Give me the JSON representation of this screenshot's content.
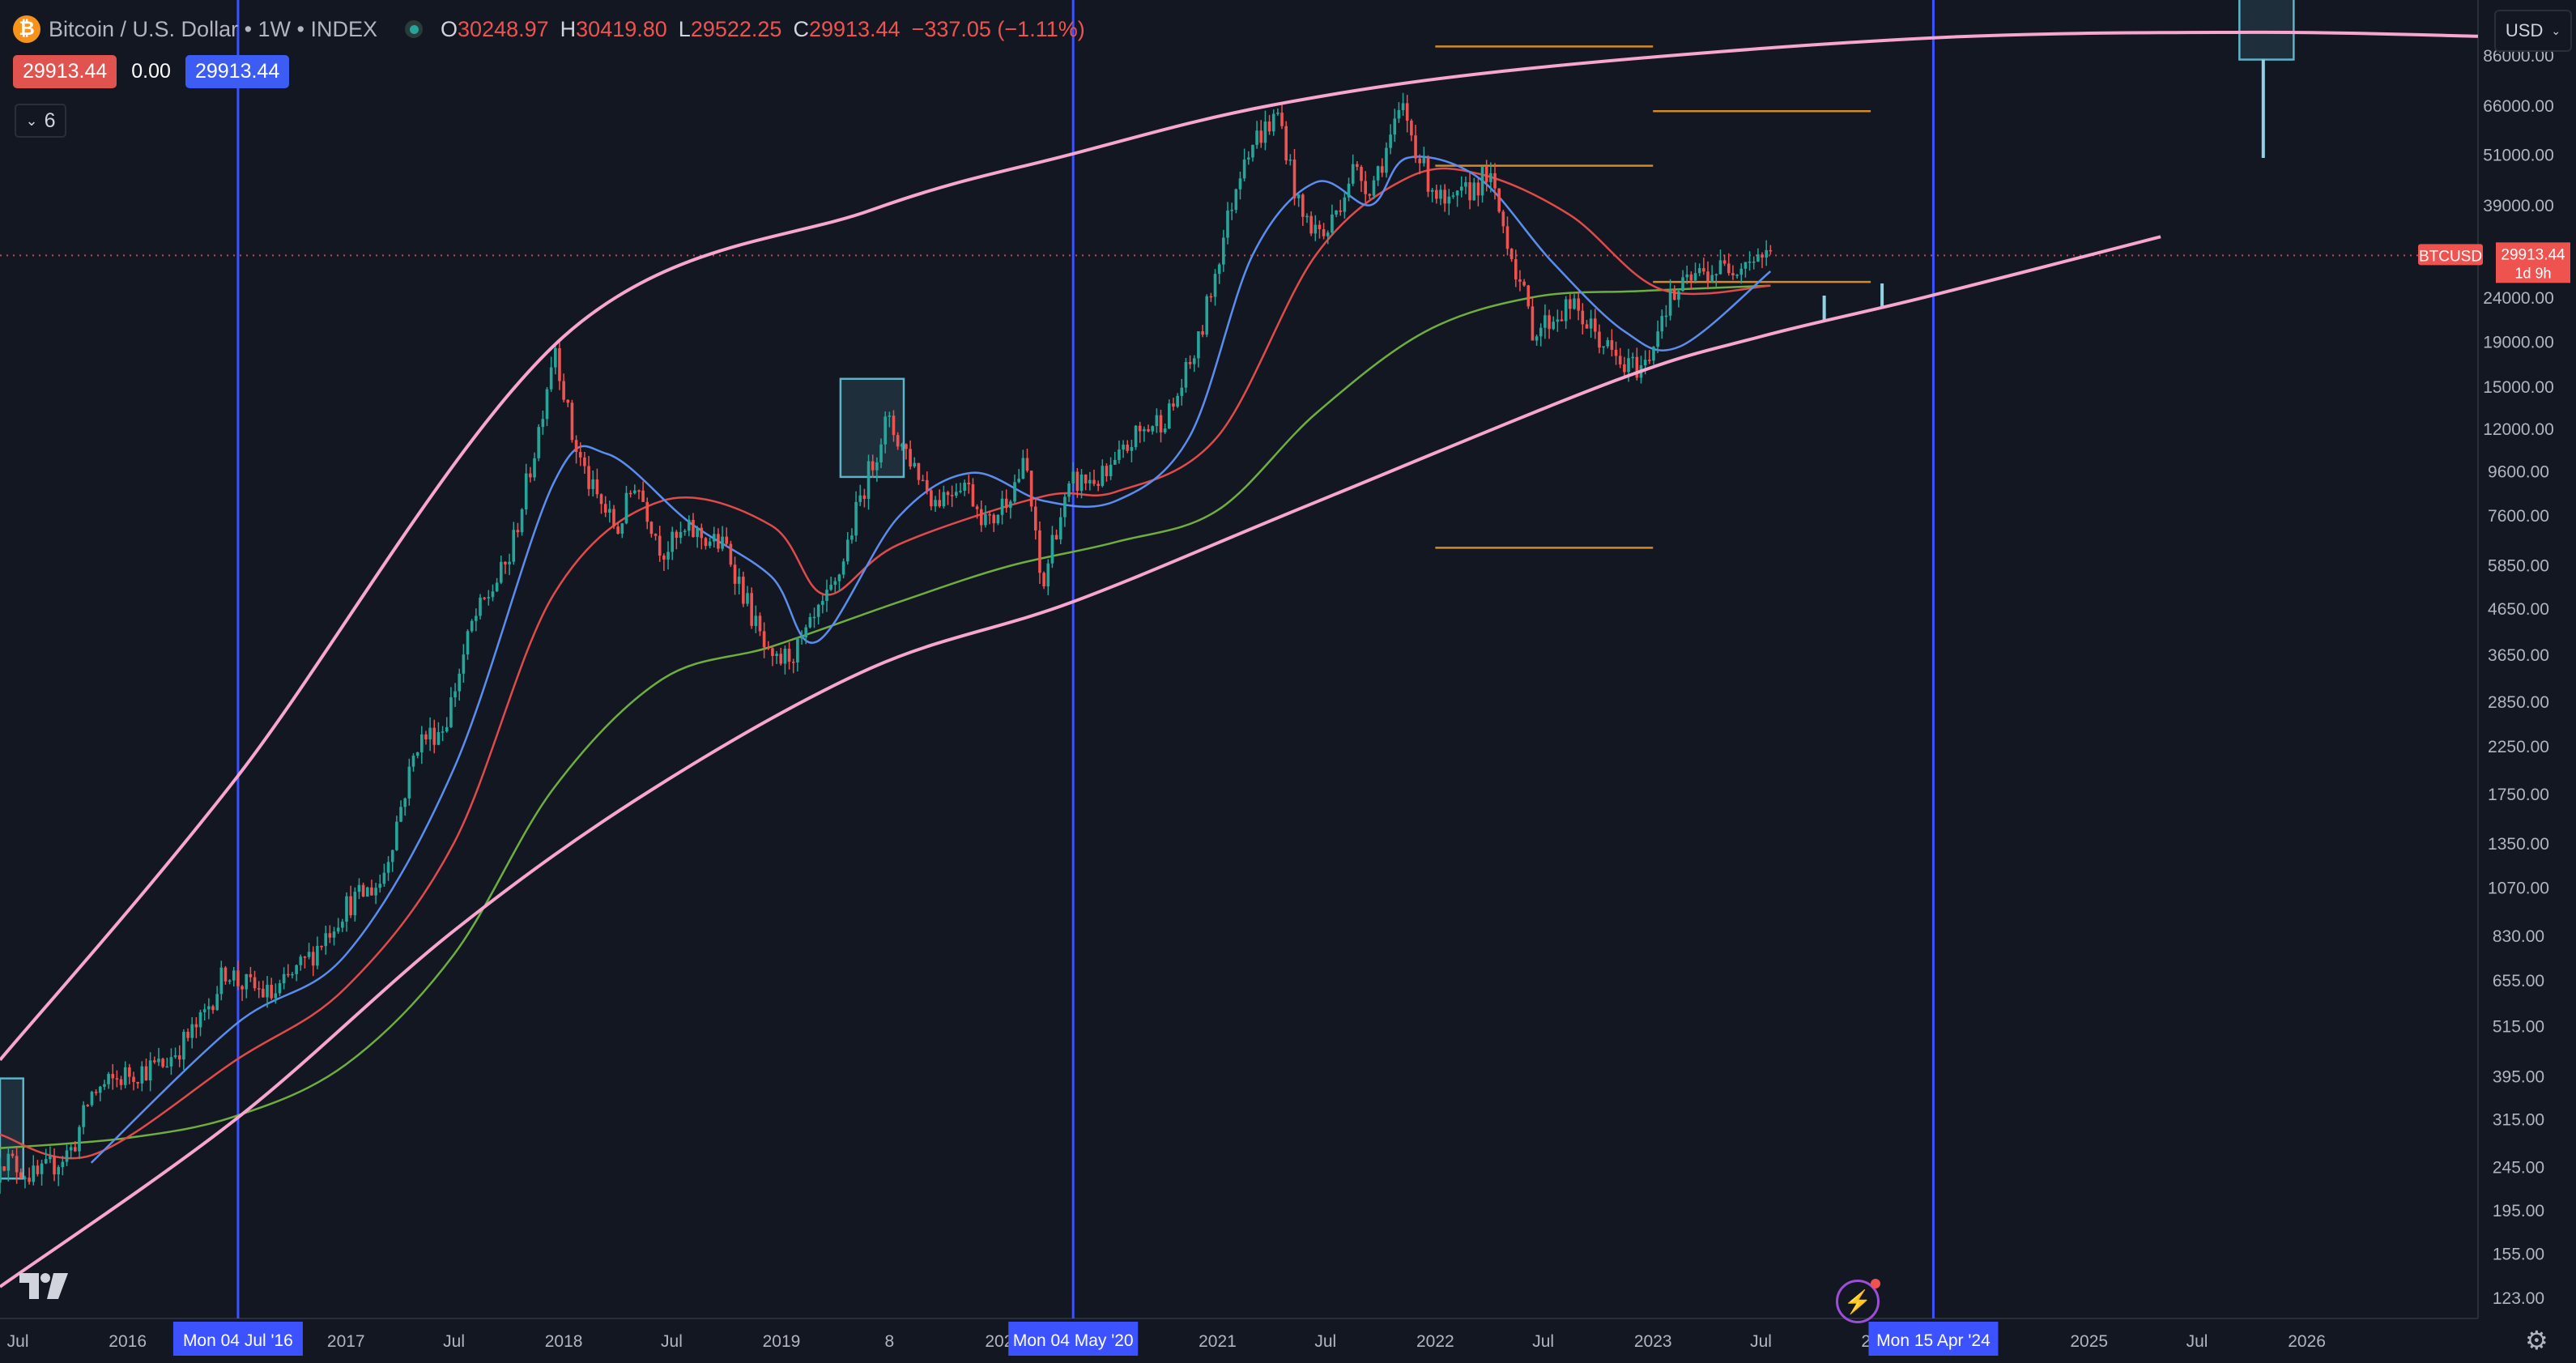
{
  "header": {
    "symbol": "Bitcoin / U.S. Dollar • 1W • INDEX",
    "ohlc": [
      {
        "k": "O",
        "v": "30248.97"
      },
      {
        "k": "H",
        "v": "30419.80"
      },
      {
        "k": "L",
        "v": "29522.25"
      },
      {
        "k": "C",
        "v": "29913.44"
      }
    ],
    "change": "−337.05 (−1.11%)",
    "sell_price": "29913.44",
    "spread": "0.00",
    "buy_price": "29913.44",
    "indicator_count": "6",
    "currency": "USD"
  },
  "colors": {
    "background": "#131722",
    "up": "#26a69a",
    "down": "#ef5350",
    "channel": "#f8a5d0",
    "vline": "#3d52ff",
    "ma_fast": "#5b8def",
    "ma_mid": "#e04a4a",
    "ma_slow": "#6fae3e",
    "hline": "#d58a2a",
    "box": "#5fb3c7"
  },
  "chart_data": {
    "type": "candlestick",
    "title": "Bitcoin / U.S. Dollar • 1W • INDEX",
    "y_scale": "log",
    "ylim": [
      110,
      115000
    ],
    "xlim": [
      "2015-06-01",
      "2026-10-15"
    ],
    "y_ticks": [
      "86000.00",
      "66000.00",
      "51000.00",
      "39000.00",
      "24000.00",
      "19000.00",
      "15000.00",
      "12000.00",
      "9600.00",
      "7600.00",
      "5850.00",
      "4650.00",
      "3650.00",
      "2850.00",
      "2250.00",
      "1750.00",
      "1350.00",
      "1070.00",
      "830.00",
      "655.00",
      "515.00",
      "395.00",
      "315.00",
      "245.00",
      "195.00",
      "155.00",
      "123.00"
    ],
    "x_ticks": [
      {
        "label": "Jul",
        "date": "2015-07-01"
      },
      {
        "label": "2016",
        "date": "2016-01-01"
      },
      {
        "label": "2017",
        "date": "2017-01-01"
      },
      {
        "label": "Jul",
        "date": "2017-07-01"
      },
      {
        "label": "2018",
        "date": "2018-01-01"
      },
      {
        "label": "Jul",
        "date": "2018-07-01"
      },
      {
        "label": "2019",
        "date": "2019-01-01"
      },
      {
        "label": "8",
        "date": "2019-07-01"
      },
      {
        "label": "202",
        "date": "2020-01-01"
      },
      {
        "label": "2021",
        "date": "2021-01-01"
      },
      {
        "label": "Jul",
        "date": "2021-07-01"
      },
      {
        "label": "2022",
        "date": "2022-01-01"
      },
      {
        "label": "Jul",
        "date": "2022-07-01"
      },
      {
        "label": "2023",
        "date": "2023-01-01"
      },
      {
        "label": "Jul",
        "date": "2023-07-01"
      },
      {
        "label": "20",
        "date": "2024-01-01"
      },
      {
        "label": "2025",
        "date": "2025-01-01"
      },
      {
        "label": "Jul",
        "date": "2025-07-01"
      },
      {
        "label": "2026",
        "date": "2026-01-01"
      }
    ],
    "cycle_markers": [
      {
        "label": "Mon 04 Jul '16",
        "date": "2016-07-04"
      },
      {
        "label": "Mon 04 May '20",
        "date": "2020-05-04"
      },
      {
        "label": "Mon 15 Apr '24",
        "date": "2024-04-15"
      }
    ],
    "price_tag": {
      "label": "BTCUSD",
      "value": "29913.44",
      "countdown": "1d 9h"
    },
    "channel_upper": [
      [
        "2015-06-01",
        430
      ],
      [
        "2016-07-01",
        1900
      ],
      [
        "2018-01-01",
        19500
      ],
      [
        "2019-06-01",
        38000
      ],
      [
        "2020-05-01",
        51000
      ],
      [
        "2021-04-01",
        66000
      ],
      [
        "2022-06-01",
        80000
      ],
      [
        "2024-04-01",
        94000
      ],
      [
        "2025-10-01",
        97000
      ],
      [
        "2026-10-15",
        95000
      ]
    ],
    "channel_lower": [
      [
        "2015-06-01",
        130
      ],
      [
        "2016-07-01",
        315
      ],
      [
        "2017-07-01",
        850
      ],
      [
        "2018-06-01",
        1800
      ],
      [
        "2019-06-01",
        3400
      ],
      [
        "2020-05-01",
        4800
      ],
      [
        "2021-06-01",
        8000
      ],
      [
        "2022-11-01",
        15500
      ],
      [
        "2023-07-01",
        19500
      ],
      [
        "2024-04-01",
        24000
      ],
      [
        "2025-05-01",
        33000
      ]
    ],
    "ohlc_weekly": [
      [
        "2015-06-01",
        225,
        260
      ],
      [
        "2015-08-01",
        250,
        230
      ],
      [
        "2015-10-01",
        235,
        270
      ],
      [
        "2015-11-01",
        270,
        360
      ],
      [
        "2016-01-01",
        360,
        400
      ],
      [
        "2016-03-01",
        400,
        420
      ],
      [
        "2016-05-01",
        420,
        520
      ],
      [
        "2016-06-15",
        520,
        700
      ],
      [
        "2016-07-04",
        700,
        650
      ],
      [
        "2016-09-01",
        650,
        600
      ],
      [
        "2016-11-01",
        600,
        740
      ],
      [
        "2017-01-01",
        740,
        970
      ],
      [
        "2017-03-01",
        970,
        1100
      ],
      [
        "2017-05-01",
        1100,
        2300
      ],
      [
        "2017-06-15",
        2300,
        2500
      ],
      [
        "2017-08-01",
        2500,
        4300
      ],
      [
        "2017-10-01",
        4300,
        6000
      ],
      [
        "2017-11-15",
        6000,
        11000
      ],
      [
        "2017-12-17",
        11000,
        19000
      ],
      [
        "2018-01-15",
        19000,
        11500
      ],
      [
        "2018-02-15",
        11500,
        8800
      ],
      [
        "2018-04-01",
        8800,
        7000
      ],
      [
        "2018-05-01",
        7000,
        9200
      ],
      [
        "2018-06-15",
        9200,
        6300
      ],
      [
        "2018-08-01",
        6300,
        7000
      ],
      [
        "2018-10-01",
        7000,
        6400
      ],
      [
        "2018-11-20",
        6400,
        4200
      ],
      [
        "2018-12-15",
        4200,
        3400
      ],
      [
        "2019-02-01",
        3400,
        3800
      ],
      [
        "2019-04-01",
        3800,
        5200
      ],
      [
        "2019-05-15",
        5200,
        8500
      ],
      [
        "2019-06-26",
        8500,
        12500
      ],
      [
        "2019-08-01",
        12500,
        10500
      ],
      [
        "2019-09-15",
        10500,
        8200
      ],
      [
        "2019-11-01",
        8200,
        9200
      ],
      [
        "2019-12-15",
        9200,
        7200
      ],
      [
        "2020-02-15",
        7200,
        10000
      ],
      [
        "2020-03-13",
        10000,
        5000
      ],
      [
        "2020-04-01",
        5000,
        6900
      ],
      [
        "2020-05-04",
        6900,
        9000
      ],
      [
        "2020-07-01",
        9000,
        9300
      ],
      [
        "2020-08-15",
        9300,
        11500
      ],
      [
        "2020-10-15",
        11500,
        13100
      ],
      [
        "2020-12-01",
        13100,
        19000
      ],
      [
        "2021-01-01",
        19000,
        29000
      ],
      [
        "2021-02-15",
        29000,
        52000
      ],
      [
        "2021-04-14",
        52000,
        63000
      ],
      [
        "2021-05-20",
        63000,
        37000
      ],
      [
        "2021-07-01",
        37000,
        33000
      ],
      [
        "2021-08-15",
        33000,
        47000
      ],
      [
        "2021-09-15",
        47000,
        43000
      ],
      [
        "2021-11-08",
        43000,
        65000
      ],
      [
        "2021-12-15",
        65000,
        46000
      ],
      [
        "2022-01-20",
        46000,
        38000
      ],
      [
        "2022-03-30",
        38000,
        46000
      ],
      [
        "2022-05-10",
        46000,
        30000
      ],
      [
        "2022-06-15",
        30000,
        20000
      ],
      [
        "2022-08-15",
        20000,
        23000
      ],
      [
        "2022-10-01",
        23000,
        19500
      ],
      [
        "2022-11-10",
        19500,
        16500
      ],
      [
        "2022-12-20",
        16500,
        16800
      ],
      [
        "2023-01-20",
        16800,
        23000
      ],
      [
        "2023-03-15",
        23000,
        27000
      ],
      [
        "2023-05-01",
        27000,
        28000
      ],
      [
        "2023-06-22",
        28000,
        30000
      ],
      [
        "2023-07-17",
        30000,
        29913.44
      ]
    ],
    "ma_20w": [
      [
        "2015-11-01",
        250
      ],
      [
        "2016-07-01",
        520
      ],
      [
        "2017-01-01",
        750
      ],
      [
        "2017-07-01",
        2000
      ],
      [
        "2017-12-15",
        9000
      ],
      [
        "2018-03-15",
        10500
      ],
      [
        "2018-08-01",
        7300
      ],
      [
        "2018-12-15",
        5500
      ],
      [
        "2019-03-01",
        3900
      ],
      [
        "2019-07-15",
        7500
      ],
      [
        "2019-11-15",
        9500
      ],
      [
        "2020-03-15",
        8200
      ],
      [
        "2020-07-15",
        8200
      ],
      [
        "2020-11-15",
        11500
      ],
      [
        "2021-03-01",
        30000
      ],
      [
        "2021-06-15",
        44000
      ],
      [
        "2021-09-15",
        39000
      ],
      [
        "2021-11-15",
        50000
      ],
      [
        "2022-03-15",
        45000
      ],
      [
        "2022-07-15",
        29000
      ],
      [
        "2022-11-15",
        20000
      ],
      [
        "2023-02-15",
        18500
      ],
      [
        "2023-07-17",
        27500
      ]
    ],
    "ma_50w": [
      [
        "2015-06-01",
        290
      ],
      [
        "2015-11-01",
        260
      ],
      [
        "2016-07-01",
        430
      ],
      [
        "2017-01-01",
        630
      ],
      [
        "2017-07-01",
        1350
      ],
      [
        "2017-12-15",
        5000
      ],
      [
        "2018-06-15",
        8200
      ],
      [
        "2018-12-15",
        7200
      ],
      [
        "2019-03-15",
        5000
      ],
      [
        "2019-07-15",
        6500
      ],
      [
        "2020-03-15",
        8400
      ],
      [
        "2020-07-15",
        8600
      ],
      [
        "2021-01-01",
        11500
      ],
      [
        "2021-06-15",
        30000
      ],
      [
        "2021-11-15",
        45000
      ],
      [
        "2022-03-15",
        46000
      ],
      [
        "2022-08-15",
        37000
      ],
      [
        "2023-01-15",
        25000
      ],
      [
        "2023-07-17",
        25500
      ]
    ],
    "ma_200w": [
      [
        "2015-06-01",
        270
      ],
      [
        "2016-01-01",
        285
      ],
      [
        "2016-07-01",
        320
      ],
      [
        "2017-01-01",
        420
      ],
      [
        "2017-07-01",
        750
      ],
      [
        "2017-12-15",
        1800
      ],
      [
        "2018-06-15",
        3200
      ],
      [
        "2018-12-15",
        3800
      ],
      [
        "2019-07-15",
        4800
      ],
      [
        "2020-01-15",
        5800
      ],
      [
        "2020-07-15",
        6600
      ],
      [
        "2021-01-01",
        7800
      ],
      [
        "2021-06-15",
        13000
      ],
      [
        "2021-12-15",
        20000
      ],
      [
        "2022-06-15",
        24000
      ],
      [
        "2022-12-15",
        24800
      ],
      [
        "2023-07-17",
        25500
      ]
    ],
    "horizontal_levels": [
      {
        "price": 90000,
        "from": "2022-01-01",
        "to": "2023-01-01"
      },
      {
        "price": 64000,
        "from": "2023-01-01",
        "to": "2024-01-01"
      },
      {
        "price": 48000,
        "from": "2022-01-01",
        "to": "2023-01-01"
      },
      {
        "price": 26000,
        "from": "2023-01-01",
        "to": "2024-01-01"
      },
      {
        "price": 6400,
        "from": "2022-01-01",
        "to": "2023-01-01"
      }
    ],
    "boxes": [
      {
        "from": "2015-06-01",
        "to": "2015-07-10",
        "top": 390,
        "bottom": 230
      },
      {
        "from": "2019-04-10",
        "to": "2019-07-25",
        "top": 15600,
        "bottom": 9300
      },
      {
        "from": "2025-09-10",
        "to": "2025-12-10",
        "top": 120000,
        "bottom": 84000
      }
    ],
    "projection_ticks": [
      {
        "date": "2023-10-15",
        "top": 24200,
        "bottom": 21200
      },
      {
        "date": "2024-01-20",
        "top": 25800,
        "bottom": 22600
      },
      {
        "date": "2025-10-20",
        "top": 84000,
        "bottom": 50000
      }
    ]
  }
}
